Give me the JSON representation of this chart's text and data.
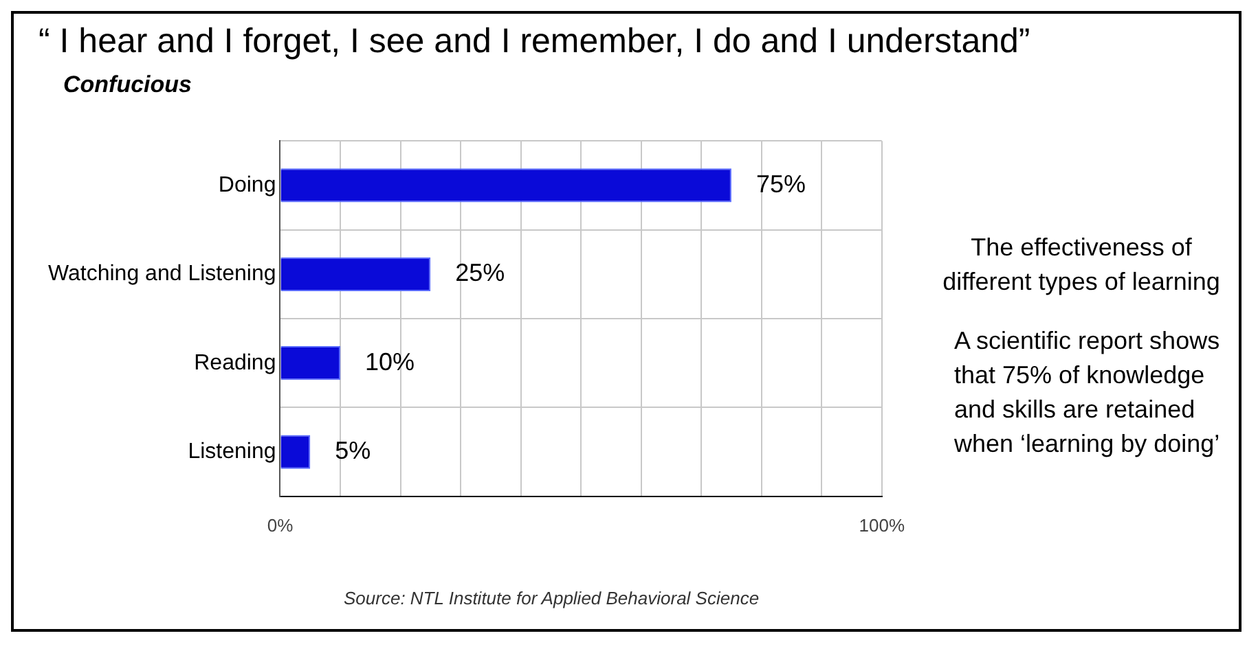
{
  "chart_data": {
    "type": "bar",
    "orientation": "horizontal",
    "title": "“ I hear and I forget,  I see and I remember,  I do and I understand”",
    "subtitle": "Confucious",
    "categories": [
      "Doing",
      "Watching and Listening",
      "Reading",
      "Listening"
    ],
    "values": [
      75,
      25,
      10,
      5
    ],
    "value_labels": [
      "75%",
      "25%",
      "10%",
      "5%"
    ],
    "color": "#0a0ad8",
    "xlim": [
      0,
      100
    ],
    "xticks": [
      {
        "value": 0,
        "label": "0%"
      },
      {
        "value": 10,
        "label": null
      },
      {
        "value": 20,
        "label": null
      },
      {
        "value": 30,
        "label": null
      },
      {
        "value": 40,
        "label": null
      },
      {
        "value": 50,
        "label": null
      },
      {
        "value": 60,
        "label": null
      },
      {
        "value": 70,
        "label": null
      },
      {
        "value": 80,
        "label": null
      },
      {
        "value": 90,
        "label": null
      },
      {
        "value": 100,
        "label": "100%"
      }
    ],
    "grid": true,
    "legend": false,
    "annotations": [
      "The effectiveness of different types of learning",
      "A scientific report shows that 75% of knowledge and skills are retained when ‘learning by doing’",
      "Source: NTL Institute for Applied Behavioral Science"
    ]
  }
}
